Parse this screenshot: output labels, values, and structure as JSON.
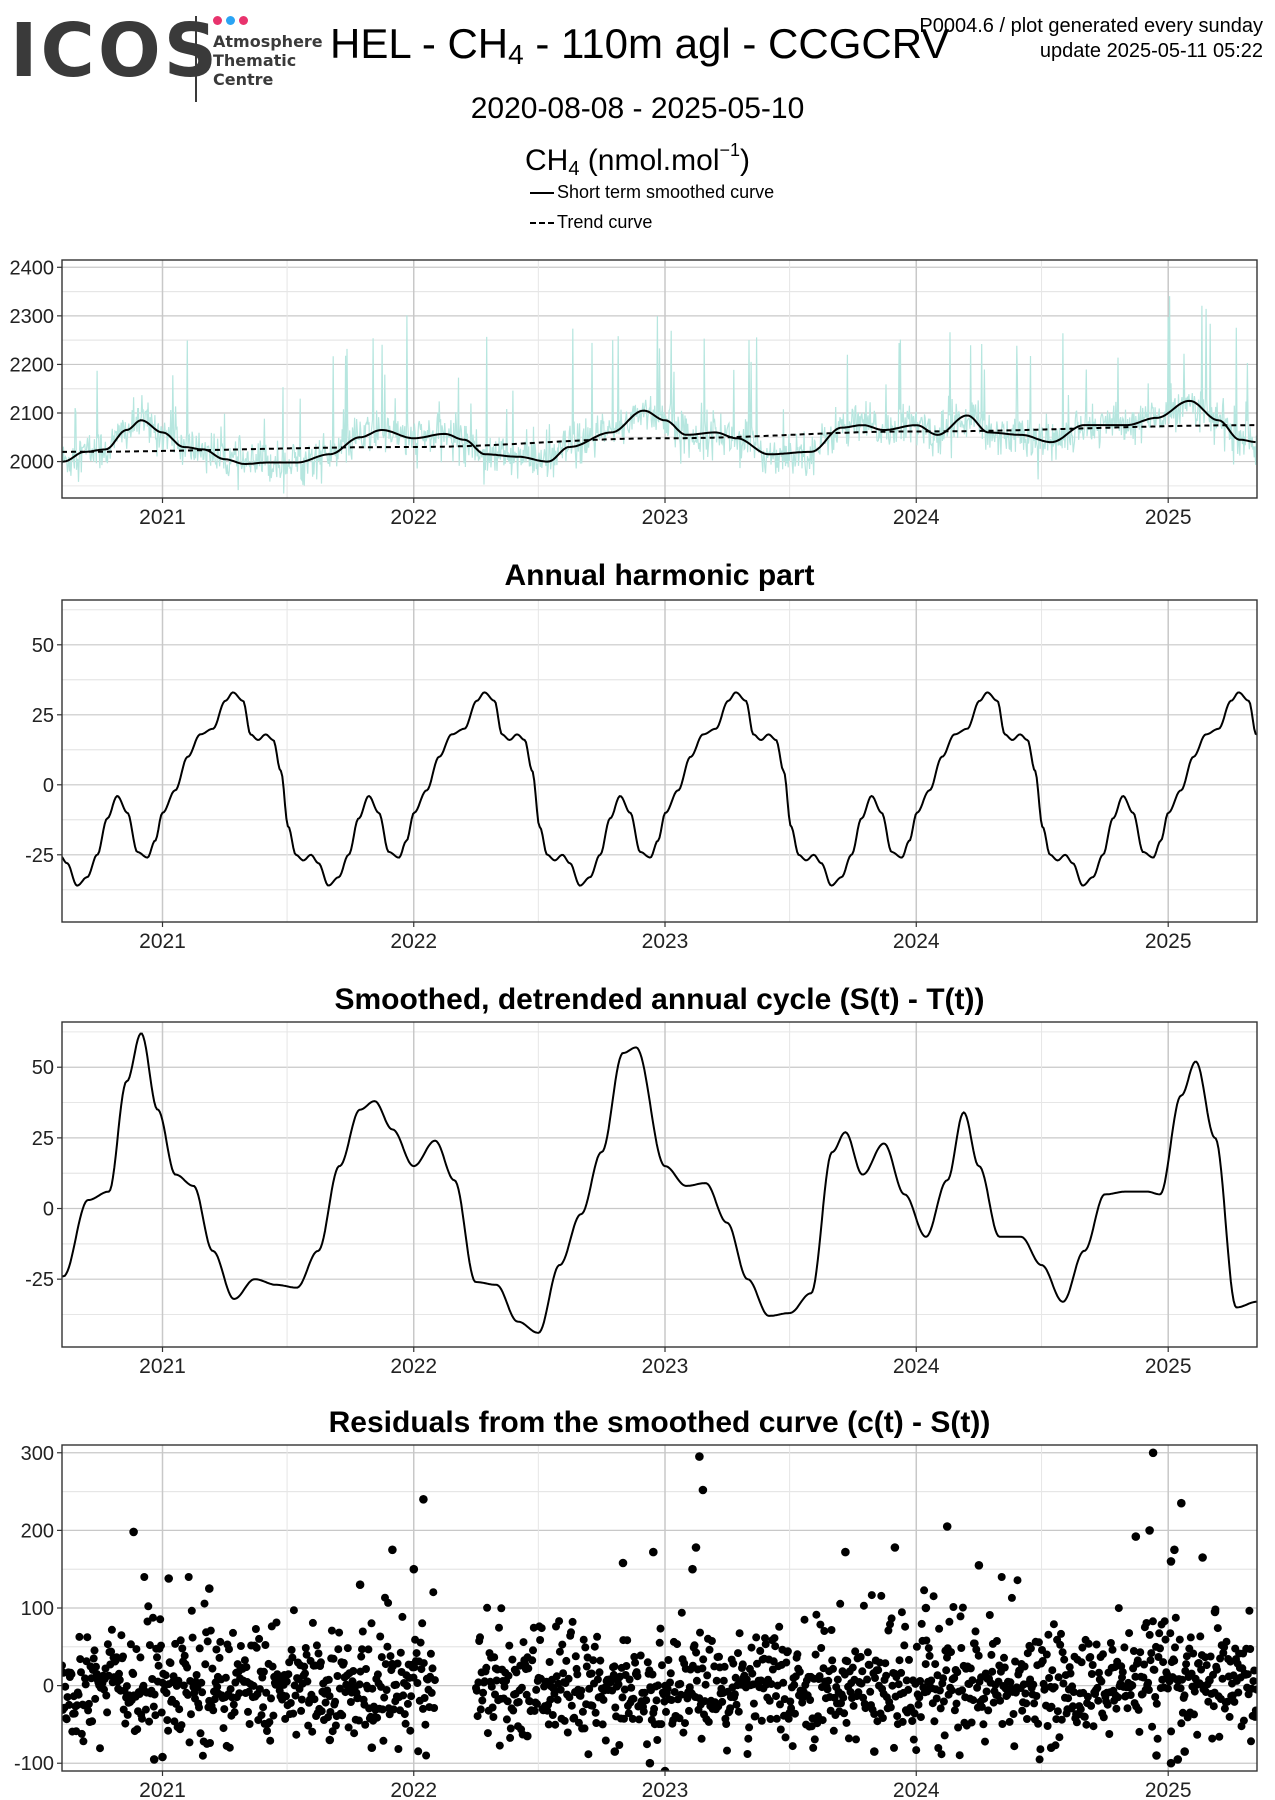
{
  "header": {
    "logo_text": "ICOS",
    "logo_sub": [
      "Atmosphere",
      "Thematic",
      "Centre"
    ],
    "title_pre": "HEL - CH",
    "title_sub": "4",
    "title_post": " - 110m agl - CCGCRV",
    "meta_line1": "P0004.6 / plot generated every sunday",
    "meta_line2": "update  2025-05-11 05:22",
    "date_range": "2020-08-08 - 2025-05-10",
    "ylabel_pre": "CH",
    "ylabel_sub": "4",
    "ylabel_mid": " (nmol.mol",
    "ylabel_sup": "−1",
    "ylabel_post": ")"
  },
  "legend": {
    "short_term": "Short term smoothed curve",
    "trend": "Trend curve"
  },
  "colors": {
    "raw": "#b6e6df",
    "line": "#000000",
    "grid": "#e6e6e6",
    "major_grid": "#c8c8c8",
    "logo_dots": [
      "#e8336d",
      "#2aa4f4",
      "#e8336d"
    ]
  },
  "chart_data": [
    {
      "type": "line",
      "title": "",
      "ylim": [
        1925,
        2415
      ],
      "yticks": [
        2000,
        2100,
        2200,
        2300,
        2400
      ],
      "x_tick_labels": [
        "2021",
        "2022",
        "2023",
        "2024",
        "2025"
      ],
      "x_range": [
        "2020-08-08",
        "2025-05-10"
      ],
      "grid": true,
      "legend_position": "top-center",
      "series": [
        {
          "name": "Short term smoothed curve",
          "style": "solid",
          "points": [
            [
              "2020-08-10",
              2000
            ],
            [
              "2020-09-10",
              2020
            ],
            [
              "2020-10-10",
              2025
            ],
            [
              "2020-11-10",
              2065
            ],
            [
              "2020-12-01",
              2085
            ],
            [
              "2021-01-01",
              2060
            ],
            [
              "2021-02-01",
              2030
            ],
            [
              "2021-03-01",
              2025
            ],
            [
              "2021-04-01",
              2005
            ],
            [
              "2021-05-01",
              1995
            ],
            [
              "2021-06-01",
              1998
            ],
            [
              "2021-07-15",
              1998
            ],
            [
              "2021-09-01",
              2015
            ],
            [
              "2021-10-15",
              2050
            ],
            [
              "2021-11-15",
              2065
            ],
            [
              "2022-01-01",
              2048
            ],
            [
              "2022-02-15",
              2057
            ],
            [
              "2022-03-15",
              2045
            ],
            [
              "2022-04-15",
              2015
            ],
            [
              "2022-06-01",
              2010
            ],
            [
              "2022-07-15",
              2000
            ],
            [
              "2022-08-15",
              2030
            ],
            [
              "2022-10-15",
              2060
            ],
            [
              "2022-12-01",
              2105
            ],
            [
              "2023-01-01",
              2085
            ],
            [
              "2023-02-01",
              2055
            ],
            [
              "2023-03-15",
              2060
            ],
            [
              "2023-04-15",
              2048
            ],
            [
              "2023-06-01",
              2015
            ],
            [
              "2023-08-01",
              2020
            ],
            [
              "2023-09-15",
              2070
            ],
            [
              "2023-10-15",
              2075
            ],
            [
              "2023-11-15",
              2065
            ],
            [
              "2024-01-01",
              2075
            ],
            [
              "2024-02-01",
              2055
            ],
            [
              "2024-03-15",
              2095
            ],
            [
              "2024-04-15",
              2060
            ],
            [
              "2024-06-01",
              2055
            ],
            [
              "2024-07-15",
              2040
            ],
            [
              "2024-09-01",
              2075
            ],
            [
              "2024-11-01",
              2075
            ],
            [
              "2024-12-15",
              2090
            ],
            [
              "2025-02-01",
              2125
            ],
            [
              "2025-03-15",
              2085
            ],
            [
              "2025-04-15",
              2045
            ],
            [
              "2025-05-10",
              2040
            ]
          ]
        },
        {
          "name": "Trend curve",
          "style": "dashed",
          "points": [
            [
              "2020-08-10",
              2020
            ],
            [
              "2022-01-01",
              2030
            ],
            [
              "2023-01-01",
              2048
            ],
            [
              "2024-01-01",
              2062
            ],
            [
              "2025-05-10",
              2075
            ]
          ]
        }
      ]
    },
    {
      "type": "line",
      "title": "Annual harmonic part",
      "ylim": [
        -49,
        66
      ],
      "yticks": [
        -25,
        0,
        25,
        50
      ],
      "x_tick_labels": [
        "2021",
        "2022",
        "2023",
        "2024",
        "2025"
      ],
      "x_range": [
        "2020-08-08",
        "2025-05-10"
      ],
      "grid": true,
      "periodic": {
        "start": "2020-08-08",
        "end": "2025-05-10",
        "cycle_points": [
          [
            0.0,
            -10
          ],
          [
            0.05,
            -2
          ],
          [
            0.1,
            10
          ],
          [
            0.15,
            18
          ],
          [
            0.2,
            20
          ],
          [
            0.25,
            30
          ],
          [
            0.28,
            33
          ],
          [
            0.32,
            30
          ],
          [
            0.35,
            18
          ],
          [
            0.38,
            16
          ],
          [
            0.41,
            18
          ],
          [
            0.44,
            16
          ],
          [
            0.47,
            5
          ],
          [
            0.5,
            -15
          ],
          [
            0.53,
            -25
          ],
          [
            0.56,
            -27
          ],
          [
            0.59,
            -25
          ],
          [
            0.62,
            -28
          ],
          [
            0.66,
            -36
          ],
          [
            0.7,
            -33
          ],
          [
            0.74,
            -25
          ],
          [
            0.78,
            -12
          ],
          [
            0.82,
            -4
          ],
          [
            0.86,
            -10
          ],
          [
            0.9,
            -24
          ],
          [
            0.94,
            -26
          ],
          [
            0.97,
            -20
          ],
          [
            1.0,
            -10
          ]
        ],
        "phase_start": 0.6
      }
    },
    {
      "type": "line",
      "title": "Smoothed, detrended annual cycle (S(t) - T(t))",
      "ylim": [
        -49,
        66
      ],
      "yticks": [
        -25,
        0,
        25,
        50
      ],
      "x_tick_labels": [
        "2021",
        "2022",
        "2023",
        "2024",
        "2025"
      ],
      "x_range": [
        "2020-08-08",
        "2025-05-10"
      ],
      "grid": true,
      "series": [
        {
          "name": "",
          "style": "solid",
          "points": [
            [
              "2020-08-10",
              -24
            ],
            [
              "2020-09-15",
              3
            ],
            [
              "2020-10-15",
              6
            ],
            [
              "2020-11-10",
              45
            ],
            [
              "2020-12-01",
              62
            ],
            [
              "2020-12-25",
              35
            ],
            [
              "2021-01-20",
              12
            ],
            [
              "2021-02-15",
              8
            ],
            [
              "2021-03-15",
              -15
            ],
            [
              "2021-04-15",
              -32
            ],
            [
              "2021-05-15",
              -25
            ],
            [
              "2021-06-15",
              -27
            ],
            [
              "2021-07-15",
              -28
            ],
            [
              "2021-08-15",
              -15
            ],
            [
              "2021-09-15",
              15
            ],
            [
              "2021-10-15",
              35
            ],
            [
              "2021-11-05",
              38
            ],
            [
              "2021-12-01",
              28
            ],
            [
              "2022-01-01",
              15
            ],
            [
              "2022-02-01",
              24
            ],
            [
              "2022-03-01",
              10
            ],
            [
              "2022-04-01",
              -26
            ],
            [
              "2022-05-01",
              -27
            ],
            [
              "2022-06-01",
              -40
            ],
            [
              "2022-07-01",
              -44
            ],
            [
              "2022-08-01",
              -20
            ],
            [
              "2022-09-01",
              -2
            ],
            [
              "2022-10-01",
              20
            ],
            [
              "2022-11-01",
              55
            ],
            [
              "2022-11-20",
              57
            ],
            [
              "2023-01-01",
              15
            ],
            [
              "2023-02-01",
              8
            ],
            [
              "2023-03-01",
              9
            ],
            [
              "2023-04-01",
              -5
            ],
            [
              "2023-05-01",
              -25
            ],
            [
              "2023-06-01",
              -38
            ],
            [
              "2023-07-01",
              -37
            ],
            [
              "2023-08-01",
              -30
            ],
            [
              "2023-09-01",
              20
            ],
            [
              "2023-09-20",
              27
            ],
            [
              "2023-10-15",
              12
            ],
            [
              "2023-11-15",
              23
            ],
            [
              "2023-12-15",
              5
            ],
            [
              "2024-01-15",
              -10
            ],
            [
              "2024-02-15",
              10
            ],
            [
              "2024-03-10",
              34
            ],
            [
              "2024-04-01",
              15
            ],
            [
              "2024-05-01",
              -10
            ],
            [
              "2024-06-01",
              -10
            ],
            [
              "2024-07-01",
              -20
            ],
            [
              "2024-08-01",
              -33
            ],
            [
              "2024-09-01",
              -15
            ],
            [
              "2024-10-01",
              5
            ],
            [
              "2024-11-01",
              6
            ],
            [
              "2024-12-01",
              6
            ],
            [
              "2024-12-20",
              5
            ],
            [
              "2025-01-20",
              40
            ],
            [
              "2025-02-10",
              52
            ],
            [
              "2025-03-10",
              25
            ],
            [
              "2025-04-10",
              -35
            ],
            [
              "2025-05-10",
              -33
            ]
          ]
        }
      ]
    },
    {
      "type": "scatter",
      "title": "Residuals from the smoothed curve (c(t) - S(t))",
      "ylim": [
        -110,
        310
      ],
      "yticks": [
        -100,
        0,
        100,
        200,
        300
      ],
      "x_tick_labels": [
        "2021",
        "2022",
        "2023",
        "2024",
        "2025"
      ],
      "x_range": [
        "2020-08-08",
        "2025-05-10"
      ],
      "grid": true,
      "outliers": [
        [
          "2020-11-20",
          198
        ],
        [
          "2021-01-10",
          138
        ],
        [
          "2021-03-10",
          125
        ],
        [
          "2021-10-15",
          130
        ],
        [
          "2021-12-01",
          175
        ],
        [
          "2022-01-15",
          240
        ],
        [
          "2022-01-01",
          150
        ],
        [
          "2022-11-01",
          158
        ],
        [
          "2022-12-15",
          172
        ],
        [
          "2023-02-20",
          295
        ],
        [
          "2023-02-25",
          252
        ],
        [
          "2023-02-15",
          178
        ],
        [
          "2023-02-10",
          150
        ],
        [
          "2023-09-20",
          172
        ],
        [
          "2023-12-01",
          178
        ],
        [
          "2024-01-15",
          100
        ],
        [
          "2024-02-15",
          205
        ],
        [
          "2024-04-01",
          155
        ],
        [
          "2024-11-15",
          192
        ],
        [
          "2024-12-10",
          300
        ],
        [
          "2024-12-05",
          200
        ],
        [
          "2025-01-20",
          235
        ],
        [
          "2025-01-10",
          175
        ],
        [
          "2025-01-05",
          160
        ],
        [
          "2025-02-20",
          165
        ],
        [
          "2025-03-10",
          95
        ],
        [
          "2020-12-20",
          -95
        ],
        [
          "2021-01-01",
          -92
        ],
        [
          "2021-09-01",
          -70
        ],
        [
          "2021-11-01",
          -80
        ],
        [
          "2022-06-15",
          -65
        ],
        [
          "2022-10-20",
          -85
        ],
        [
          "2022-12-10",
          -100
        ],
        [
          "2023-01-01",
          -110
        ],
        [
          "2023-11-01",
          -85
        ],
        [
          "2024-07-15",
          -80
        ],
        [
          "2024-12-15",
          -90
        ],
        [
          "2025-01-05",
          -100
        ],
        [
          "2025-01-15",
          -95
        ],
        [
          "2025-01-25",
          -85
        ]
      ],
      "note_density": "about 1500 daily residuals, mostly between -70 and 90"
    }
  ]
}
